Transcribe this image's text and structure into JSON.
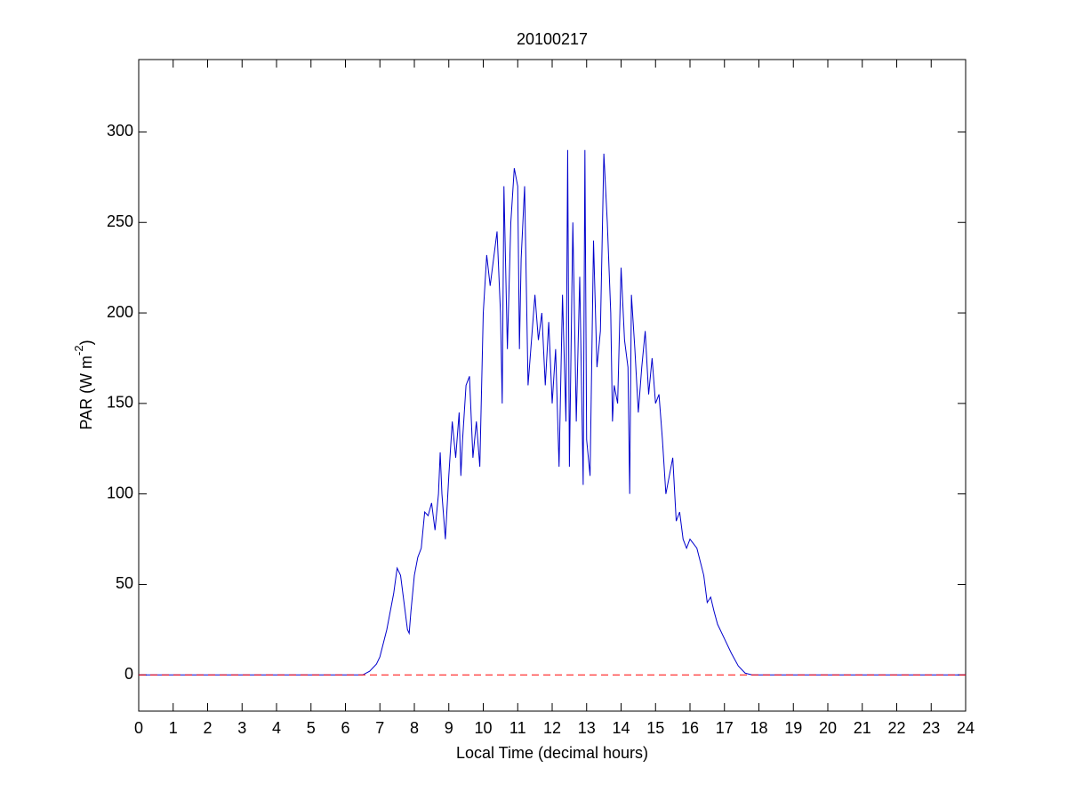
{
  "chart_data": {
    "type": "line",
    "title": "20100217",
    "x_label": "Local Time (decimal hours)",
    "y_label": {
      "text": "PAR (W m",
      "superscript": "-2",
      "suffix": ")"
    },
    "xlim": [
      0,
      24
    ],
    "ylim": [
      -20,
      340
    ],
    "xticks": [
      0,
      1,
      2,
      3,
      4,
      5,
      6,
      7,
      8,
      9,
      10,
      11,
      12,
      13,
      14,
      15,
      16,
      17,
      18,
      19,
      20,
      21,
      22,
      23,
      24
    ],
    "yticks": [
      0,
      50,
      100,
      150,
      200,
      250,
      300
    ],
    "grid": false,
    "reference_line": {
      "y": 0,
      "color": "#ff0000",
      "style": "dashed"
    },
    "x": [
      0,
      6.5,
      6.7,
      6.9,
      7.0,
      7.2,
      7.4,
      7.5,
      7.6,
      7.7,
      7.8,
      7.85,
      7.9,
      8.0,
      8.1,
      8.2,
      8.3,
      8.4,
      8.5,
      8.6,
      8.7,
      8.75,
      8.8,
      8.9,
      9.0,
      9.1,
      9.2,
      9.3,
      9.35,
      9.4,
      9.5,
      9.6,
      9.7,
      9.8,
      9.9,
      10.0,
      10.1,
      10.2,
      10.3,
      10.4,
      10.5,
      10.55,
      10.6,
      10.7,
      10.8,
      10.9,
      11.0,
      11.05,
      11.1,
      11.2,
      11.3,
      11.4,
      11.5,
      11.6,
      11.7,
      11.8,
      11.9,
      12.0,
      12.1,
      12.2,
      12.3,
      12.4,
      12.45,
      12.5,
      12.6,
      12.7,
      12.8,
      12.9,
      12.95,
      13.0,
      13.1,
      13.2,
      13.3,
      13.4,
      13.5,
      13.6,
      13.7,
      13.75,
      13.8,
      13.9,
      14.0,
      14.1,
      14.2,
      14.25,
      14.3,
      14.4,
      14.5,
      14.6,
      14.7,
      14.8,
      14.9,
      15.0,
      15.1,
      15.2,
      15.3,
      15.4,
      15.5,
      15.6,
      15.7,
      15.8,
      15.9,
      16.0,
      16.2,
      16.4,
      16.5,
      16.6,
      16.7,
      16.8,
      17.0,
      17.2,
      17.4,
      17.6,
      17.8,
      18,
      24
    ],
    "series": [
      {
        "color": "#0000cc",
        "values": [
          0,
          0,
          2,
          6,
          10,
          25,
          45,
          59,
          55,
          40,
          25,
          23,
          35,
          55,
          65,
          70,
          90,
          88,
          95,
          80,
          100,
          123,
          100,
          75,
          110,
          140,
          120,
          145,
          110,
          130,
          160,
          165,
          120,
          140,
          115,
          200,
          232,
          215,
          230,
          245,
          200,
          150,
          270,
          180,
          250,
          280,
          270,
          180,
          230,
          270,
          160,
          185,
          210,
          185,
          200,
          160,
          195,
          150,
          180,
          115,
          210,
          140,
          290,
          115,
          250,
          140,
          220,
          105,
          290,
          130,
          110,
          240,
          170,
          190,
          288,
          250,
          200,
          140,
          160,
          150,
          225,
          185,
          170,
          100,
          210,
          180,
          145,
          170,
          190,
          155,
          175,
          150,
          155,
          130,
          100,
          110,
          120,
          85,
          90,
          75,
          70,
          75,
          70,
          55,
          40,
          43,
          35,
          28,
          20,
          12,
          5,
          1,
          0,
          0,
          0
        ]
      }
    ]
  }
}
